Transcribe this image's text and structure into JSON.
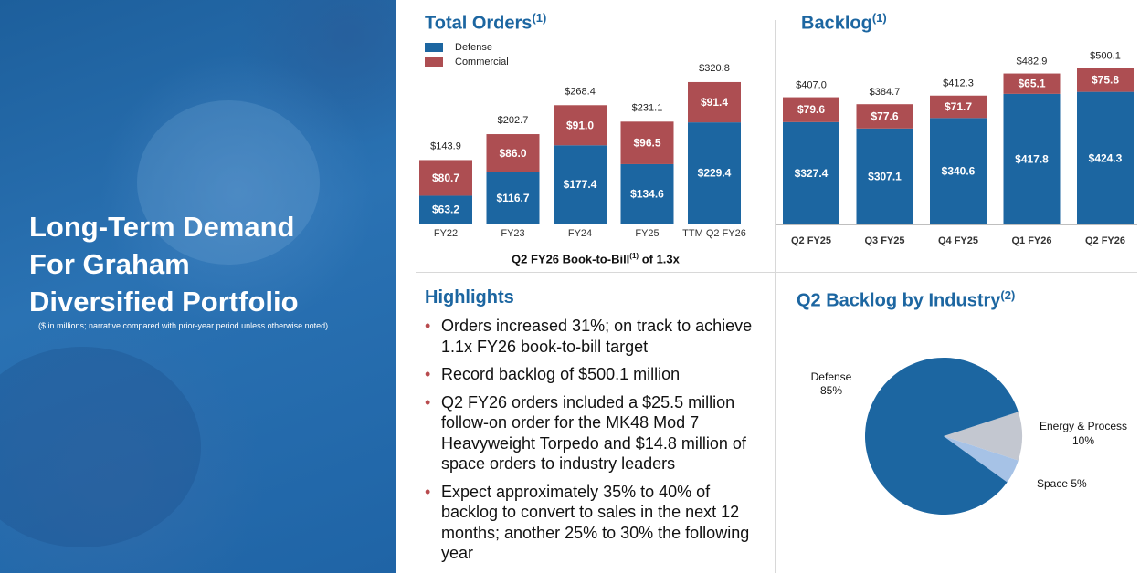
{
  "sidebar": {
    "title_lines": [
      "Long-Term Demand",
      "For Graham",
      "Diversified Portfolio"
    ],
    "note": "($ in millions; narrative compared with prior-year period unless otherwise noted)"
  },
  "orders": {
    "title": "Total Orders",
    "title_sup": "(1)",
    "book_to_bill_prefix": "Q2 FY26 Book-to-Bill",
    "book_to_bill_sup": "(1)",
    "book_to_bill_suffix": " of 1.3x"
  },
  "backlog": {
    "title": "Backlog",
    "title_sup": "(1)"
  },
  "highlights": {
    "title": "Highlights",
    "items": [
      "Orders increased 31%; on track to achieve 1.1x FY26 book-to-bill target",
      "Record backlog of $500.1 million",
      "Q2 FY26 orders included a $25.5 million follow-on order for the MK48 Mod 7 Heavyweight Torpedo and $14.8 million of space orders to industry leaders",
      "Expect approximately 35% to 40% of backlog to convert to sales in the next 12 months; another 25% to 30% the following year"
    ]
  },
  "industry": {
    "title": "Q2 Backlog by Industry",
    "title_sup": "(2)"
  },
  "colors": {
    "defense": "#1c66a1",
    "commercial": "#ad4e52",
    "energy": "#c3c7d0",
    "space": "#a6c2e6",
    "title": "#1c66a1"
  },
  "chart_data": [
    {
      "type": "bar",
      "stacked": true,
      "title": "Total Orders",
      "categories": [
        "FY22",
        "FY23",
        "FY24",
        "FY25",
        "TTM Q2 FY26"
      ],
      "series": [
        {
          "name": "Defense",
          "values": [
            63.2,
            116.7,
            177.4,
            134.6,
            229.4
          ],
          "labels": [
            "$63.2",
            "$116.7",
            "$177.4",
            "$134.6",
            "$229.4"
          ]
        },
        {
          "name": "Commercial",
          "values": [
            80.7,
            86.0,
            91.0,
            96.5,
            91.4
          ],
          "labels": [
            "$80.7",
            "$86.0",
            "$91.0",
            "$96.5",
            "$91.4"
          ]
        }
      ],
      "totals": [
        "$143.9",
        "$202.7",
        "$268.4",
        "$231.1",
        "$320.8"
      ],
      "legend": "top-left"
    },
    {
      "type": "bar",
      "stacked": true,
      "title": "Backlog",
      "categories": [
        "Q2 FY25",
        "Q3 FY25",
        "Q4 FY25",
        "Q1 FY26",
        "Q2 FY26"
      ],
      "series": [
        {
          "name": "Defense",
          "values": [
            327.4,
            307.1,
            340.6,
            417.8,
            424.3
          ],
          "labels": [
            "$327.4",
            "$307.1",
            "$340.6",
            "$417.8",
            "$424.3"
          ]
        },
        {
          "name": "Commercial",
          "values": [
            79.6,
            77.6,
            71.7,
            65.1,
            75.8
          ],
          "labels": [
            "$79.6",
            "$77.6",
            "$71.7",
            "$65.1",
            "$75.8"
          ]
        }
      ],
      "totals": [
        "$407.0",
        "$384.7",
        "$412.3",
        "$482.9",
        "$500.1"
      ]
    },
    {
      "type": "pie",
      "title": "Q2 Backlog by Industry",
      "slices": [
        {
          "name": "Defense",
          "value": 85,
          "label_lines": [
            "Defense",
            "85%"
          ]
        },
        {
          "name": "Energy & Process",
          "value": 10,
          "label_lines": [
            "Energy & Process",
            "10%"
          ]
        },
        {
          "name": "Space",
          "value": 5,
          "label_lines": [
            "Space 5%"
          ]
        }
      ]
    }
  ]
}
